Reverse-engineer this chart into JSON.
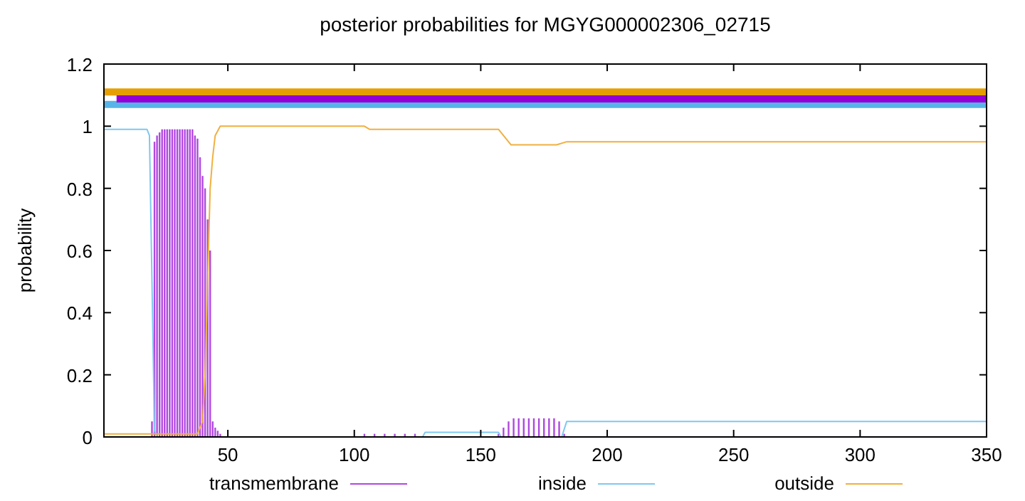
{
  "chart_data": {
    "type": "line",
    "title": "posterior probabilities for MGYG000002306_02715",
    "ylabel": "probability",
    "xlim": [
      1,
      350
    ],
    "xticks": [
      50,
      100,
      150,
      200,
      250,
      300,
      350
    ],
    "ylim": [
      0,
      1.2
    ],
    "yticks": [
      0,
      0.2,
      0.4,
      0.6,
      0.8,
      1,
      1.2
    ],
    "grid": false,
    "legend": "bottom",
    "series": [
      {
        "type": "step",
        "color": "#e69f00",
        "x": [
          1,
          350
        ],
        "values": [
          1.11,
          1.11
        ]
      },
      {
        "type": "step",
        "color": "#56b4e9",
        "x": [
          1,
          350
        ],
        "values": [
          1.07,
          1.07
        ]
      },
      {
        "type": "step",
        "color": "#9400d3",
        "x": [
          6,
          18,
          44,
          350
        ],
        "values": [
          1.088,
          1.088,
          1.088,
          1.088
        ]
      },
      {
        "type": "bar",
        "name": "transmembrane",
        "color": "#b048e0",
        "x": [
          20,
          21,
          22,
          23,
          24,
          25,
          26,
          27,
          28,
          29,
          30,
          31,
          32,
          33,
          34,
          35,
          36,
          37,
          38,
          39,
          40,
          41,
          42,
          43,
          44,
          45,
          46,
          47,
          104,
          108,
          112,
          116,
          120,
          124,
          157,
          159,
          161,
          163,
          165,
          167,
          169,
          171,
          173,
          175,
          177,
          179,
          181,
          183
        ],
        "values": [
          0.05,
          0.95,
          0.97,
          0.98,
          0.99,
          0.99,
          0.99,
          0.99,
          0.99,
          0.99,
          0.99,
          0.99,
          0.99,
          0.99,
          0.99,
          0.99,
          0.99,
          0.97,
          0.96,
          0.9,
          0.84,
          0.8,
          0.7,
          0.6,
          0.05,
          0.03,
          0.02,
          0.01,
          0.01,
          0.01,
          0.01,
          0.01,
          0.01,
          0.01,
          0.01,
          0.03,
          0.05,
          0.06,
          0.06,
          0.06,
          0.06,
          0.06,
          0.06,
          0.06,
          0.06,
          0.06,
          0.05,
          0.01
        ]
      },
      {
        "name": "inside",
        "color": "#7fc8ef",
        "x": [
          1,
          18,
          19,
          20,
          21,
          22,
          127,
          128,
          157,
          158,
          182,
          184,
          350
        ],
        "values": [
          0.99,
          0.99,
          0.97,
          0.5,
          0.02,
          0,
          0,
          0.015,
          0.015,
          0,
          0,
          0.05,
          0.05
        ]
      },
      {
        "name": "outside",
        "color": "#f0b040",
        "x": [
          1,
          38,
          40,
          41,
          42,
          43,
          44,
          45,
          47,
          104,
          106,
          157,
          160,
          162,
          180,
          184,
          350
        ],
        "values": [
          0.01,
          0.01,
          0.05,
          0.2,
          0.5,
          0.8,
          0.9,
          0.97,
          1,
          1,
          0.99,
          0.99,
          0.96,
          0.94,
          0.94,
          0.95,
          0.95
        ]
      }
    ]
  }
}
